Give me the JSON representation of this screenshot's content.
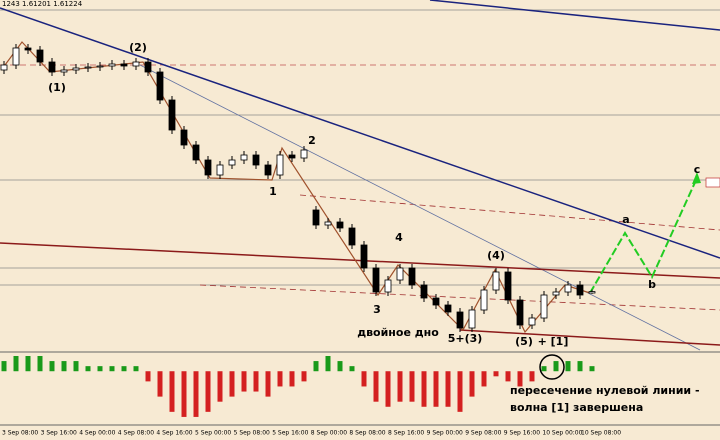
{
  "chart_data": [
    {
      "type": "candlestick",
      "header": "1243 1.61201 1.61224",
      "ylim": [
        1.6064,
        1.6414
      ],
      "open": [
        1.6344,
        1.6349,
        1.6366,
        1.6364,
        1.6352,
        1.6342,
        1.6344,
        1.6346,
        1.6347,
        1.6348,
        1.635,
        1.6348,
        1.6352,
        1.6342,
        1.6314,
        1.6284,
        1.6269,
        1.6254,
        1.6239,
        1.6249,
        1.6254,
        1.6259,
        1.6249,
        1.6239,
        1.6259,
        1.6256,
        1.6204,
        1.6189,
        1.6192,
        1.6186,
        1.6169,
        1.6146,
        1.6122,
        1.6134,
        1.6146,
        1.6129,
        1.6116,
        1.6109,
        1.6102,
        1.6086,
        1.6104,
        1.6124,
        1.6142,
        1.6114,
        1.6089,
        1.6096,
        1.6119,
        1.6122,
        1.6129,
        1.6121
      ],
      "high": [
        1.6353,
        1.637,
        1.637,
        1.6368,
        1.6356,
        1.6348,
        1.635,
        1.6351,
        1.6352,
        1.6354,
        1.6354,
        1.6356,
        1.6356,
        1.6346,
        1.6318,
        1.6288,
        1.6273,
        1.6258,
        1.6253,
        1.6258,
        1.6263,
        1.6263,
        1.6253,
        1.6263,
        1.6263,
        1.6268,
        1.6208,
        1.6196,
        1.6196,
        1.619,
        1.6173,
        1.615,
        1.6138,
        1.615,
        1.615,
        1.6133,
        1.612,
        1.6113,
        1.6106,
        1.6108,
        1.6128,
        1.6146,
        1.6146,
        1.6118,
        1.61,
        1.6123,
        1.6126,
        1.6133,
        1.6133,
        1.61243
      ],
      "low": [
        1.634,
        1.6345,
        1.636,
        1.6348,
        1.6338,
        1.6338,
        1.634,
        1.6342,
        1.6343,
        1.6344,
        1.6344,
        1.6344,
        1.6338,
        1.631,
        1.628,
        1.6265,
        1.625,
        1.6235,
        1.6235,
        1.6245,
        1.625,
        1.6245,
        1.6235,
        1.6235,
        1.6252,
        1.6252,
        1.6185,
        1.6185,
        1.6182,
        1.6165,
        1.6142,
        1.6118,
        1.6118,
        1.613,
        1.6125,
        1.6112,
        1.6105,
        1.6098,
        1.6082,
        1.6082,
        1.61,
        1.612,
        1.611,
        1.6085,
        1.6085,
        1.6092,
        1.6115,
        1.6118,
        1.6115,
        1.61201
      ],
      "close": [
        1.6349,
        1.6366,
        1.6364,
        1.6352,
        1.6342,
        1.6344,
        1.6346,
        1.6347,
        1.6348,
        1.635,
        1.6348,
        1.6352,
        1.6342,
        1.6314,
        1.6284,
        1.6269,
        1.6254,
        1.6239,
        1.6249,
        1.6254,
        1.6259,
        1.6249,
        1.6239,
        1.6259,
        1.6256,
        1.6264,
        1.6189,
        1.6192,
        1.6186,
        1.6169,
        1.6146,
        1.6122,
        1.6134,
        1.6146,
        1.6129,
        1.6116,
        1.6109,
        1.6102,
        1.6086,
        1.6104,
        1.6124,
        1.6142,
        1.6114,
        1.6089,
        1.6096,
        1.6119,
        1.6122,
        1.6129,
        1.6119,
        1.61224
      ],
      "up_color": "#ffffff",
      "down_color": "#000000",
      "x_labels": [
        "3 Sep 08:00",
        "3 Sep 16:00",
        "4 Sep 00:00",
        "4 Sep 08:00",
        "4 Sep 16:00",
        "5 Sep 00:00",
        "5 Sep 08:00",
        "5 Sep 16:00",
        "8 Sep 00:00",
        "8 Sep 08:00",
        "8 Sep 16:00",
        "9 Sep 00:00",
        "9 Sep 08:00",
        "9 Sep 16:00",
        "10 Sep 00:00",
        "10 Sep 08:00"
      ],
      "annotations": [
        "(1)",
        "(2)",
        "1",
        "2",
        "3",
        "4",
        "5+(3)",
        "(4)",
        "(5)",
        "+ [1]",
        "a",
        "b",
        "c",
        "двойное дно",
        "пересечение нулевой линии -",
        "волна [1] завершена"
      ]
    },
    {
      "type": "bar",
      "ylim": [
        -10,
        3
      ],
      "pos_color": "#1a9a1a",
      "neg_color": "#d42020",
      "values": [
        2,
        3,
        3,
        3,
        2,
        2,
        2,
        1,
        1,
        1,
        1,
        1,
        -2,
        -5,
        -8,
        -9,
        -9,
        -8,
        -6,
        -5,
        -4,
        -4,
        -5,
        -3,
        -3,
        -2,
        2,
        3,
        2,
        1,
        -3,
        -6,
        -7,
        -6,
        -6,
        -7,
        -7,
        -7,
        -8,
        -5,
        -3,
        -1,
        -2,
        -3,
        -2,
        1,
        2,
        2,
        2,
        1
      ]
    }
  ]
}
